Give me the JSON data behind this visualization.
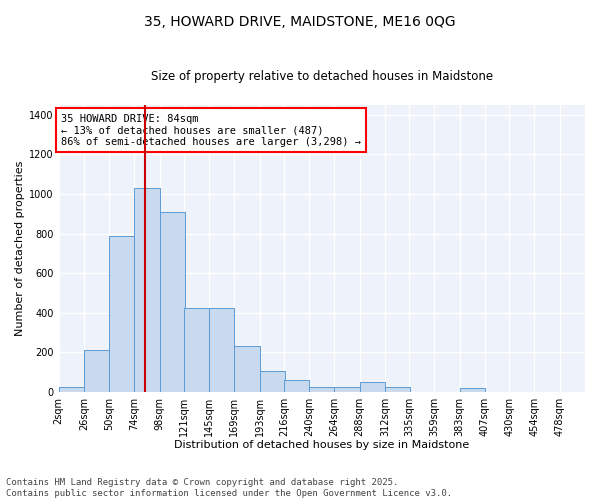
{
  "title_line1": "35, HOWARD DRIVE, MAIDSTONE, ME16 0QG",
  "title_line2": "Size of property relative to detached houses in Maidstone",
  "xlabel": "Distribution of detached houses by size in Maidstone",
  "ylabel": "Number of detached properties",
  "footnote": "Contains HM Land Registry data © Crown copyright and database right 2025.\nContains public sector information licensed under the Open Government Licence v3.0.",
  "annotation_title": "35 HOWARD DRIVE: 84sqm",
  "annotation_line1": "← 13% of detached houses are smaller (487)",
  "annotation_line2": "86% of semi-detached houses are larger (3,298) →",
  "bar_edge_color": "#5b9bd5",
  "bar_face_color": "#c9d9f0",
  "vline_color": "#cc0000",
  "background_color": "#eef3fb",
  "grid_color": "#ffffff",
  "categories": [
    "2sqm",
    "26sqm",
    "50sqm",
    "74sqm",
    "98sqm",
    "121sqm",
    "145sqm",
    "169sqm",
    "193sqm",
    "216sqm",
    "240sqm",
    "264sqm",
    "288sqm",
    "312sqm",
    "335sqm",
    "359sqm",
    "383sqm",
    "407sqm",
    "430sqm",
    "454sqm",
    "478sqm"
  ],
  "bin_edges": [
    2,
    26,
    50,
    74,
    98,
    121,
    145,
    169,
    193,
    216,
    240,
    264,
    288,
    312,
    335,
    359,
    383,
    407,
    430,
    454,
    478
  ],
  "bin_width": 24,
  "values": [
    25,
    210,
    790,
    1030,
    910,
    425,
    425,
    230,
    105,
    60,
    25,
    25,
    50,
    25,
    0,
    0,
    20,
    0,
    0,
    0,
    0
  ],
  "ylim": [
    0,
    1450
  ],
  "yticks": [
    0,
    200,
    400,
    600,
    800,
    1000,
    1200,
    1400
  ],
  "vline_x": 84,
  "annotation_fontsize": 7.5,
  "title1_fontsize": 10,
  "title2_fontsize": 8.5,
  "footnote_fontsize": 6.5,
  "axis_label_fontsize": 8,
  "tick_fontsize": 7
}
